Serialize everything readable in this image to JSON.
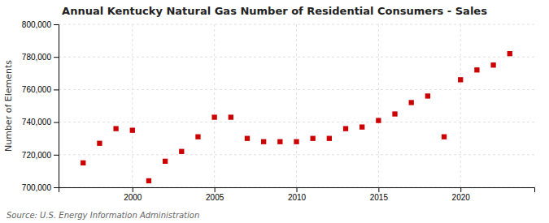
{
  "chart_data": {
    "type": "scatter",
    "title": "Annual Kentucky Natural Gas Number of Residential Consumers - Sales",
    "y_label": "Number of Elements",
    "annotations": [
      "Source: U.S. Energy Information Administration"
    ],
    "x": [
      1997,
      1998,
      1999,
      2000,
      2001,
      2002,
      2003,
      2004,
      2005,
      2006,
      2007,
      2008,
      2009,
      2010,
      2011,
      2012,
      2013,
      2014,
      2015,
      2016,
      2017,
      2018,
      2019,
      2020,
      2021,
      2022,
      2023
    ],
    "values": [
      715000,
      727000,
      736000,
      735000,
      704000,
      716000,
      722000,
      731000,
      743000,
      743000,
      730000,
      728000,
      728000,
      728000,
      730000,
      730000,
      736000,
      737000,
      741000,
      745000,
      752000,
      756000,
      731000,
      766000,
      772000,
      775000,
      782000
    ],
    "color": "#CC0000",
    "marker": "square",
    "xlim": [
      1995.5,
      2024.5
    ],
    "ylim": [
      700000,
      800000
    ],
    "xticks": [
      2000,
      2005,
      2010,
      2015,
      2020
    ],
    "yticks": [
      {
        "value": 700000,
        "label": "700,000"
      },
      {
        "value": 720000,
        "label": "720,000"
      },
      {
        "value": 740000,
        "label": "740,000"
      },
      {
        "value": 760000,
        "label": "760,000"
      },
      {
        "value": 780000,
        "label": "780,000"
      },
      {
        "value": 800000,
        "label": "800,000"
      }
    ],
    "grid": true
  }
}
